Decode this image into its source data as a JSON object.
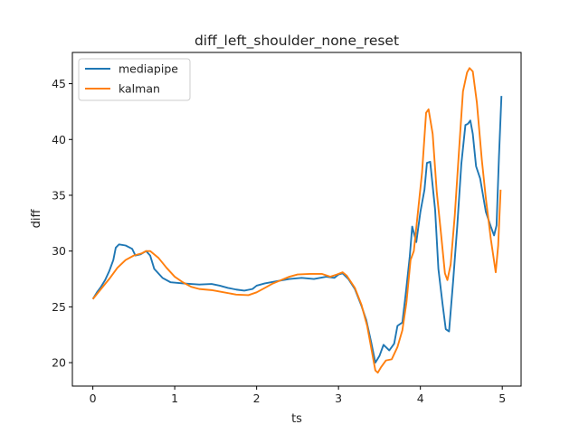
{
  "chart_data": {
    "type": "line",
    "title": "diff_left_shoulder_none_reset",
    "xlabel": "ts",
    "ylabel": "diff",
    "xlim": [
      -0.25,
      5.23
    ],
    "ylim": [
      17.9,
      47.8
    ],
    "xticks": [
      0,
      1,
      2,
      3,
      4,
      5
    ],
    "yticks": [
      20,
      25,
      30,
      35,
      40,
      45
    ],
    "grid": false,
    "legend_position": "top-left",
    "series": [
      {
        "name": "mediapipe",
        "color": "#1f77b4",
        "points": [
          [
            0.0,
            25.7
          ],
          [
            0.05,
            26.3
          ],
          [
            0.1,
            26.8
          ],
          [
            0.15,
            27.4
          ],
          [
            0.2,
            28.2
          ],
          [
            0.25,
            29.2
          ],
          [
            0.28,
            30.3
          ],
          [
            0.32,
            30.6
          ],
          [
            0.4,
            30.5
          ],
          [
            0.48,
            30.2
          ],
          [
            0.52,
            29.6
          ],
          [
            0.58,
            29.7
          ],
          [
            0.65,
            30.0
          ],
          [
            0.7,
            29.6
          ],
          [
            0.75,
            28.4
          ],
          [
            0.85,
            27.6
          ],
          [
            0.95,
            27.2
          ],
          [
            1.1,
            27.1
          ],
          [
            1.3,
            27.0
          ],
          [
            1.45,
            27.05
          ],
          [
            1.55,
            26.9
          ],
          [
            1.65,
            26.7
          ],
          [
            1.75,
            26.55
          ],
          [
            1.85,
            26.45
          ],
          [
            1.95,
            26.6
          ],
          [
            2.0,
            26.9
          ],
          [
            2.1,
            27.1
          ],
          [
            2.25,
            27.3
          ],
          [
            2.4,
            27.5
          ],
          [
            2.55,
            27.6
          ],
          [
            2.7,
            27.5
          ],
          [
            2.85,
            27.7
          ],
          [
            2.95,
            27.6
          ],
          [
            3.0,
            27.9
          ],
          [
            3.05,
            28.0
          ],
          [
            3.12,
            27.5
          ],
          [
            3.2,
            26.6
          ],
          [
            3.28,
            25.1
          ],
          [
            3.34,
            23.8
          ],
          [
            3.4,
            21.8
          ],
          [
            3.45,
            20.0
          ],
          [
            3.5,
            20.6
          ],
          [
            3.55,
            21.6
          ],
          [
            3.62,
            21.1
          ],
          [
            3.68,
            21.7
          ],
          [
            3.72,
            23.3
          ],
          [
            3.78,
            23.6
          ],
          [
            3.82,
            26.1
          ],
          [
            3.87,
            29.5
          ],
          [
            3.9,
            32.2
          ],
          [
            3.95,
            30.8
          ],
          [
            4.0,
            33.5
          ],
          [
            4.05,
            35.5
          ],
          [
            4.08,
            37.9
          ],
          [
            4.12,
            38.0
          ],
          [
            4.18,
            33.7
          ],
          [
            4.22,
            28.4
          ],
          [
            4.27,
            25.3
          ],
          [
            4.31,
            23.0
          ],
          [
            4.35,
            22.8
          ],
          [
            4.4,
            27.3
          ],
          [
            4.45,
            32.2
          ],
          [
            4.5,
            37.8
          ],
          [
            4.55,
            41.3
          ],
          [
            4.58,
            41.4
          ],
          [
            4.61,
            41.7
          ],
          [
            4.64,
            40.5
          ],
          [
            4.68,
            37.6
          ],
          [
            4.73,
            36.5
          ],
          [
            4.8,
            33.5
          ],
          [
            4.86,
            32.2
          ],
          [
            4.9,
            31.4
          ],
          [
            4.93,
            32.3
          ],
          [
            4.96,
            38.5
          ],
          [
            4.99,
            43.9
          ]
        ]
      },
      {
        "name": "kalman",
        "color": "#ff7f0e",
        "points": [
          [
            0.0,
            25.7
          ],
          [
            0.1,
            26.6
          ],
          [
            0.2,
            27.5
          ],
          [
            0.3,
            28.5
          ],
          [
            0.4,
            29.2
          ],
          [
            0.5,
            29.6
          ],
          [
            0.6,
            29.8
          ],
          [
            0.65,
            30.0
          ],
          [
            0.7,
            30.0
          ],
          [
            0.8,
            29.4
          ],
          [
            0.9,
            28.5
          ],
          [
            1.0,
            27.7
          ],
          [
            1.1,
            27.2
          ],
          [
            1.2,
            26.8
          ],
          [
            1.3,
            26.6
          ],
          [
            1.45,
            26.5
          ],
          [
            1.6,
            26.3
          ],
          [
            1.75,
            26.1
          ],
          [
            1.9,
            26.05
          ],
          [
            2.0,
            26.3
          ],
          [
            2.1,
            26.7
          ],
          [
            2.2,
            27.1
          ],
          [
            2.3,
            27.4
          ],
          [
            2.4,
            27.7
          ],
          [
            2.5,
            27.9
          ],
          [
            2.65,
            27.95
          ],
          [
            2.8,
            27.95
          ],
          [
            2.9,
            27.7
          ],
          [
            2.98,
            27.9
          ],
          [
            3.05,
            28.1
          ],
          [
            3.1,
            27.8
          ],
          [
            3.2,
            26.7
          ],
          [
            3.28,
            25.2
          ],
          [
            3.35,
            23.3
          ],
          [
            3.4,
            21.3
          ],
          [
            3.45,
            19.3
          ],
          [
            3.48,
            19.1
          ],
          [
            3.52,
            19.6
          ],
          [
            3.58,
            20.2
          ],
          [
            3.65,
            20.3
          ],
          [
            3.72,
            21.4
          ],
          [
            3.78,
            22.9
          ],
          [
            3.83,
            25.4
          ],
          [
            3.88,
            29.2
          ],
          [
            3.92,
            30.0
          ],
          [
            3.97,
            33.5
          ],
          [
            4.02,
            37.0
          ],
          [
            4.07,
            42.4
          ],
          [
            4.1,
            42.7
          ],
          [
            4.15,
            40.5
          ],
          [
            4.2,
            35.3
          ],
          [
            4.25,
            31.7
          ],
          [
            4.3,
            28.0
          ],
          [
            4.33,
            27.4
          ],
          [
            4.37,
            28.8
          ],
          [
            4.42,
            33.2
          ],
          [
            4.47,
            38.8
          ],
          [
            4.52,
            44.3
          ],
          [
            4.57,
            46.0
          ],
          [
            4.6,
            46.4
          ],
          [
            4.64,
            46.1
          ],
          [
            4.69,
            43.3
          ],
          [
            4.75,
            38.2
          ],
          [
            4.8,
            34.7
          ],
          [
            4.86,
            31.1
          ],
          [
            4.9,
            29.1
          ],
          [
            4.92,
            28.1
          ],
          [
            4.95,
            30.5
          ],
          [
            4.98,
            35.5
          ]
        ]
      }
    ]
  }
}
